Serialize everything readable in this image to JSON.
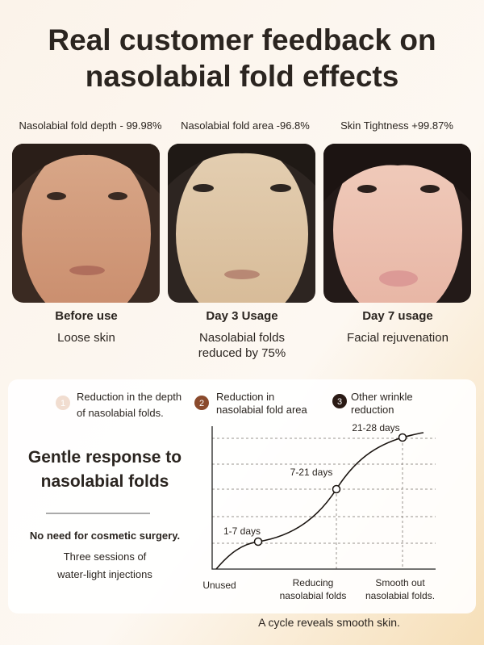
{
  "header": {
    "title_lines": [
      "Real customer feedback on",
      "nasolabial fold effects"
    ]
  },
  "cards": [
    {
      "stat": "Nasolabial fold depth - 99.98%",
      "label": "Before use",
      "description": [
        "Loose skin"
      ]
    },
    {
      "stat": "Nasolabial fold area -96.8%",
      "label": "Day 3 Usage",
      "description": [
        "Nasolabial folds",
        "reduced by 75%"
      ]
    },
    {
      "stat": "Skin Tightness +99.87%",
      "label": "Day 7 usage",
      "description": [
        "Facial rejuvenation"
      ]
    }
  ],
  "steps": [
    {
      "number": "1",
      "text": [
        "Reduction in the depth",
        "of nasolabial folds."
      ]
    },
    {
      "number": "2",
      "text": [
        "Reduction in",
        "nasolabial fold area"
      ]
    },
    {
      "number": "3",
      "text": [
        "Other wrinkle",
        "reduction"
      ]
    }
  ],
  "side": {
    "heading": [
      "Gentle response to",
      "nasolabial folds"
    ],
    "note": "No need for cosmetic surgery.",
    "detail": [
      "Three sessions of",
      "water-light injections"
    ]
  },
  "diagram": {
    "points": [
      "1-7 days",
      "7-21 days",
      "21-28 days"
    ],
    "x_labels": [
      [
        "Unused"
      ],
      [
        "Reducing",
        "nasolabial folds"
      ],
      [
        "Smooth out",
        "nasolabial folds."
      ]
    ]
  },
  "footer": "A cycle reveals smooth skin."
}
